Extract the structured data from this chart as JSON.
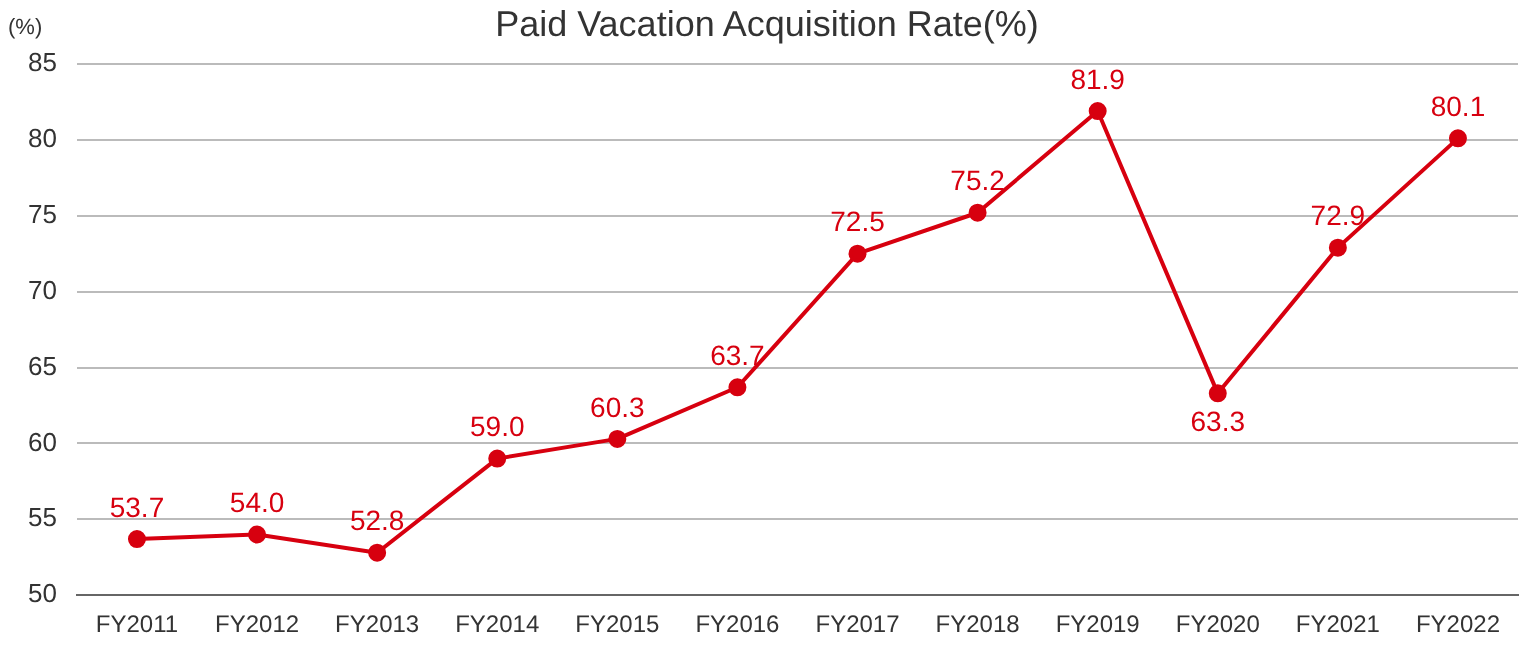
{
  "chart_data": {
    "type": "line",
    "title": "Paid Vacation Acquisition Rate(%)",
    "ylabel": "(%)",
    "categories": [
      "FY2011",
      "FY2012",
      "FY2013",
      "FY2014",
      "FY2015",
      "FY2016",
      "FY2017",
      "FY2018",
      "FY2019",
      "FY2020",
      "FY2021",
      "FY2022"
    ],
    "series": [
      {
        "color": "#d7000f",
        "values": [
          53.7,
          54.0,
          52.8,
          59.0,
          60.3,
          63.7,
          72.5,
          75.2,
          81.9,
          63.3,
          72.9,
          80.1
        ],
        "value_labels": [
          "53.7",
          "54.0",
          "52.8",
          "59.0",
          "60.3",
          "63.7",
          "72.5",
          "75.2",
          "81.9",
          "63.3",
          "72.9",
          "80.1"
        ]
      }
    ],
    "ylim": [
      50,
      85
    ],
    "yticks": [
      50,
      55,
      60,
      65,
      70,
      75,
      80,
      85
    ],
    "grid": "y",
    "legend": false,
    "marker": "circle",
    "line_style": "solid"
  }
}
